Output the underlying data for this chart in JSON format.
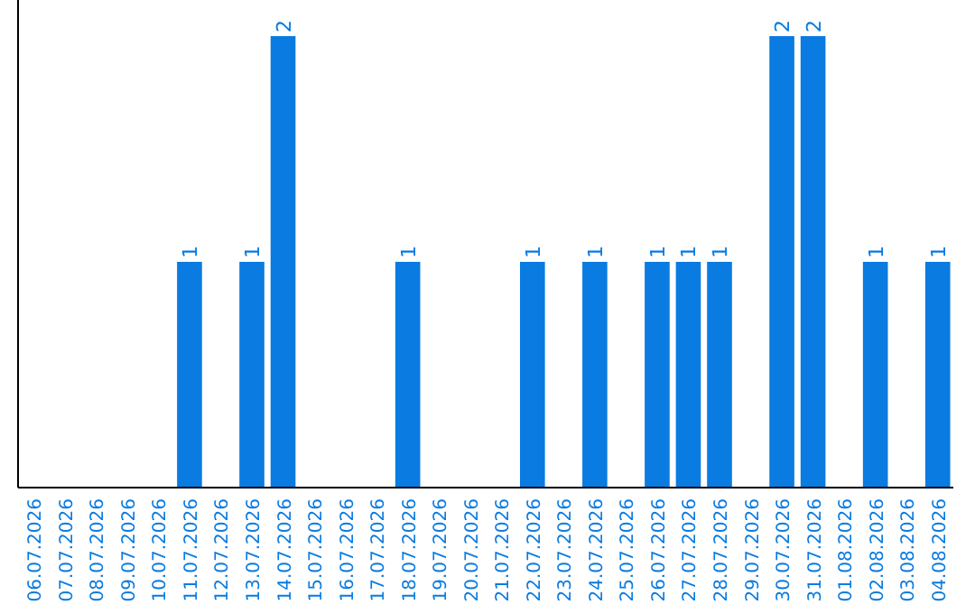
{
  "chart_data": {
    "type": "bar",
    "categories": [
      "06.07.2026",
      "07.07.2026",
      "08.07.2026",
      "09.07.2026",
      "10.07.2026",
      "11.07.2026",
      "12.07.2026",
      "13.07.2026",
      "14.07.2026",
      "15.07.2026",
      "16.07.2026",
      "17.07.2026",
      "18.07.2026",
      "19.07.2026",
      "20.07.2026",
      "21.07.2026",
      "22.07.2026",
      "23.07.2026",
      "24.07.2026",
      "25.07.2026",
      "26.07.2026",
      "27.07.2026",
      "28.07.2026",
      "29.07.2026",
      "30.07.2026",
      "31.07.2026",
      "01.08.2026",
      "02.08.2026",
      "03.08.2026",
      "04.08.2026"
    ],
    "values": [
      0,
      0,
      0,
      0,
      0,
      1,
      0,
      1,
      2,
      0,
      0,
      0,
      1,
      0,
      0,
      0,
      1,
      0,
      1,
      0,
      1,
      1,
      1,
      0,
      2,
      2,
      0,
      1,
      0,
      1
    ],
    "value_labels": [
      null,
      null,
      null,
      null,
      null,
      "1",
      null,
      "1",
      "2",
      null,
      null,
      null,
      "1",
      null,
      null,
      null,
      "1",
      null,
      "1",
      null,
      "1",
      "1",
      "1",
      null,
      "2",
      "2",
      null,
      "1",
      null,
      "1"
    ],
    "color": "#0a7be0"
  }
}
